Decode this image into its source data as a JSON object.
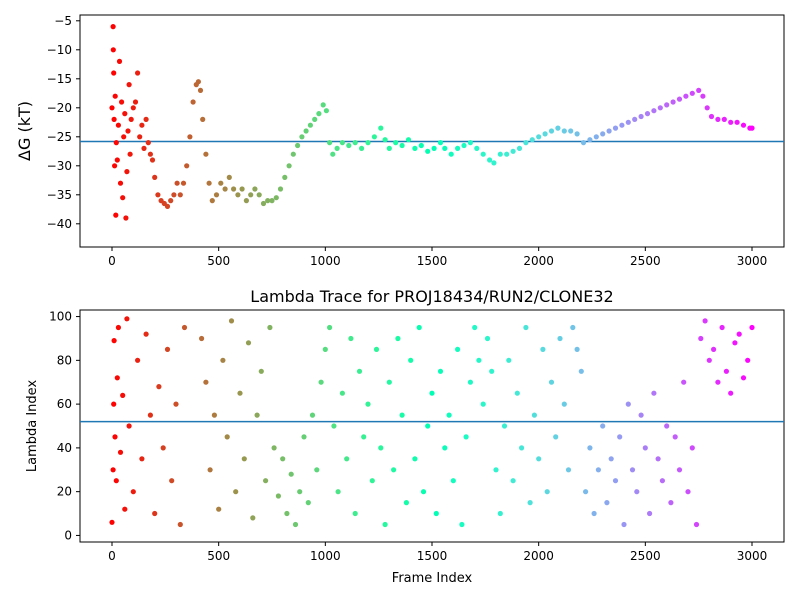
{
  "chart_data": [
    {
      "type": "scatter",
      "title": "",
      "xlabel": "",
      "ylabel": "ΔG (kT)",
      "xlim": [
        -150,
        3150
      ],
      "ylim": [
        -44,
        -4
      ],
      "xticks": [
        0,
        500,
        1000,
        1500,
        2000,
        2500,
        3000
      ],
      "yticks": [
        -5,
        -10,
        -15,
        -20,
        -25,
        -30,
        -35,
        -40
      ],
      "hline": -25.8,
      "hline_color": "#1f77b4",
      "colormap": "rainbow",
      "grid": false,
      "points": [
        [
          0,
          -20
        ],
        [
          5,
          -6
        ],
        [
          6,
          -10
        ],
        [
          8,
          -14
        ],
        [
          10,
          -22
        ],
        [
          12,
          -30
        ],
        [
          15,
          -18
        ],
        [
          18,
          -38.5
        ],
        [
          20,
          -26
        ],
        [
          25,
          -29
        ],
        [
          30,
          -23
        ],
        [
          35,
          -12
        ],
        [
          40,
          -33
        ],
        [
          45,
          -19
        ],
        [
          50,
          -35.5
        ],
        [
          55,
          -25
        ],
        [
          60,
          -21
        ],
        [
          65,
          -39
        ],
        [
          70,
          -31
        ],
        [
          75,
          -24
        ],
        [
          80,
          -16
        ],
        [
          85,
          -28
        ],
        [
          90,
          -22
        ],
        [
          100,
          -20
        ],
        [
          110,
          -19
        ],
        [
          120,
          -14
        ],
        [
          130,
          -25
        ],
        [
          140,
          -23
        ],
        [
          150,
          -27
        ],
        [
          160,
          -22
        ],
        [
          170,
          -26
        ],
        [
          180,
          -28
        ],
        [
          190,
          -29
        ],
        [
          200,
          -32
        ],
        [
          215,
          -35
        ],
        [
          230,
          -36
        ],
        [
          245,
          -36.5
        ],
        [
          260,
          -37
        ],
        [
          275,
          -36
        ],
        [
          290,
          -35
        ],
        [
          305,
          -33
        ],
        [
          320,
          -35
        ],
        [
          335,
          -33
        ],
        [
          350,
          -30
        ],
        [
          365,
          -25
        ],
        [
          380,
          -19
        ],
        [
          395,
          -16
        ],
        [
          405,
          -15.5
        ],
        [
          415,
          -17
        ],
        [
          425,
          -22
        ],
        [
          440,
          -28
        ],
        [
          455,
          -33
        ],
        [
          470,
          -36
        ],
        [
          490,
          -35
        ],
        [
          510,
          -33
        ],
        [
          530,
          -34
        ],
        [
          550,
          -32
        ],
        [
          570,
          -34
        ],
        [
          590,
          -35
        ],
        [
          610,
          -34
        ],
        [
          630,
          -36
        ],
        [
          650,
          -35
        ],
        [
          670,
          -34
        ],
        [
          690,
          -35
        ],
        [
          710,
          -36.5
        ],
        [
          730,
          -36
        ],
        [
          750,
          -36
        ],
        [
          770,
          -35.5
        ],
        [
          790,
          -34
        ],
        [
          810,
          -32
        ],
        [
          830,
          -30
        ],
        [
          850,
          -28
        ],
        [
          870,
          -26.5
        ],
        [
          890,
          -25
        ],
        [
          910,
          -24
        ],
        [
          930,
          -23
        ],
        [
          950,
          -22
        ],
        [
          970,
          -21
        ],
        [
          990,
          -19.5
        ],
        [
          1005,
          -20.5
        ],
        [
          1020,
          -26
        ],
        [
          1035,
          -28
        ],
        [
          1055,
          -27
        ],
        [
          1080,
          -26
        ],
        [
          1110,
          -26.5
        ],
        [
          1140,
          -26
        ],
        [
          1170,
          -27
        ],
        [
          1200,
          -26
        ],
        [
          1230,
          -25
        ],
        [
          1260,
          -23.5
        ],
        [
          1280,
          -25.5
        ],
        [
          1300,
          -27
        ],
        [
          1330,
          -26
        ],
        [
          1360,
          -26.5
        ],
        [
          1390,
          -25.5
        ],
        [
          1420,
          -27
        ],
        [
          1450,
          -26.5
        ],
        [
          1480,
          -27.5
        ],
        [
          1510,
          -27
        ],
        [
          1540,
          -26
        ],
        [
          1560,
          -27
        ],
        [
          1590,
          -28
        ],
        [
          1620,
          -27
        ],
        [
          1650,
          -26.5
        ],
        [
          1680,
          -26
        ],
        [
          1710,
          -27
        ],
        [
          1740,
          -28
        ],
        [
          1770,
          -29
        ],
        [
          1790,
          -29.5
        ],
        [
          1820,
          -28
        ],
        [
          1850,
          -28
        ],
        [
          1880,
          -27.5
        ],
        [
          1910,
          -27
        ],
        [
          1940,
          -26
        ],
        [
          1970,
          -25.5
        ],
        [
          2000,
          -25
        ],
        [
          2030,
          -24.5
        ],
        [
          2060,
          -24
        ],
        [
          2090,
          -23.5
        ],
        [
          2120,
          -24
        ],
        [
          2150,
          -24
        ],
        [
          2180,
          -24.5
        ],
        [
          2210,
          -26
        ],
        [
          2240,
          -25.5
        ],
        [
          2270,
          -25
        ],
        [
          2300,
          -24.5
        ],
        [
          2330,
          -24
        ],
        [
          2360,
          -23.5
        ],
        [
          2390,
          -23
        ],
        [
          2420,
          -22.5
        ],
        [
          2450,
          -22
        ],
        [
          2480,
          -21.5
        ],
        [
          2510,
          -21
        ],
        [
          2540,
          -20.5
        ],
        [
          2570,
          -20
        ],
        [
          2600,
          -19.5
        ],
        [
          2630,
          -19
        ],
        [
          2660,
          -18.5
        ],
        [
          2690,
          -18
        ],
        [
          2720,
          -17.5
        ],
        [
          2750,
          -17
        ],
        [
          2770,
          -18
        ],
        [
          2790,
          -20
        ],
        [
          2810,
          -21.5
        ],
        [
          2840,
          -22
        ],
        [
          2870,
          -22
        ],
        [
          2900,
          -22.5
        ],
        [
          2930,
          -22.5
        ],
        [
          2960,
          -23
        ],
        [
          2990,
          -23.5
        ],
        [
          3000,
          -23.5
        ]
      ]
    },
    {
      "type": "scatter",
      "title": "Lambda Trace for PROJ18434/RUN2/CLONE32",
      "xlabel": "Frame Index",
      "ylabel": "Lambda Index",
      "xlim": [
        -150,
        3150
      ],
      "ylim": [
        -3,
        103
      ],
      "xticks": [
        0,
        500,
        1000,
        1500,
        2000,
        2500,
        3000
      ],
      "yticks": [
        0,
        20,
        40,
        60,
        80,
        100
      ],
      "hline": 52,
      "hline_color": "#1f77b4",
      "colormap": "rainbow",
      "grid": false,
      "points": [
        [
          0,
          6
        ],
        [
          5,
          30
        ],
        [
          8,
          60
        ],
        [
          10,
          89
        ],
        [
          14,
          45
        ],
        [
          20,
          25
        ],
        [
          25,
          72
        ],
        [
          30,
          95
        ],
        [
          40,
          38
        ],
        [
          50,
          64
        ],
        [
          60,
          12
        ],
        [
          70,
          99
        ],
        [
          80,
          50
        ],
        [
          100,
          20
        ],
        [
          120,
          80
        ],
        [
          140,
          35
        ],
        [
          160,
          92
        ],
        [
          180,
          55
        ],
        [
          200,
          10
        ],
        [
          220,
          68
        ],
        [
          240,
          40
        ],
        [
          260,
          85
        ],
        [
          280,
          25
        ],
        [
          300,
          60
        ],
        [
          320,
          5
        ],
        [
          340,
          95
        ],
        [
          420,
          90
        ],
        [
          440,
          70
        ],
        [
          460,
          30
        ],
        [
          480,
          55
        ],
        [
          500,
          12
        ],
        [
          520,
          80
        ],
        [
          540,
          45
        ],
        [
          560,
          98
        ],
        [
          580,
          20
        ],
        [
          600,
          65
        ],
        [
          620,
          35
        ],
        [
          640,
          88
        ],
        [
          660,
          8
        ],
        [
          680,
          55
        ],
        [
          700,
          75
        ],
        [
          720,
          25
        ],
        [
          740,
          95
        ],
        [
          760,
          40
        ],
        [
          780,
          18
        ],
        [
          800,
          35
        ],
        [
          820,
          10
        ],
        [
          840,
          28
        ],
        [
          860,
          5
        ],
        [
          880,
          20
        ],
        [
          900,
          45
        ],
        [
          920,
          15
        ],
        [
          940,
          55
        ],
        [
          960,
          30
        ],
        [
          980,
          70
        ],
        [
          1000,
          85
        ],
        [
          1020,
          95
        ],
        [
          1040,
          50
        ],
        [
          1060,
          20
        ],
        [
          1080,
          65
        ],
        [
          1100,
          35
        ],
        [
          1120,
          90
        ],
        [
          1140,
          10
        ],
        [
          1160,
          75
        ],
        [
          1180,
          45
        ],
        [
          1200,
          60
        ],
        [
          1220,
          25
        ],
        [
          1240,
          85
        ],
        [
          1260,
          40
        ],
        [
          1280,
          5
        ],
        [
          1300,
          70
        ],
        [
          1320,
          30
        ],
        [
          1340,
          90
        ],
        [
          1360,
          55
        ],
        [
          1380,
          15
        ],
        [
          1400,
          80
        ],
        [
          1420,
          35
        ],
        [
          1440,
          95
        ],
        [
          1460,
          20
        ],
        [
          1480,
          50
        ],
        [
          1500,
          65
        ],
        [
          1520,
          10
        ],
        [
          1540,
          75
        ],
        [
          1560,
          40
        ],
        [
          1580,
          55
        ],
        [
          1600,
          25
        ],
        [
          1620,
          85
        ],
        [
          1640,
          5
        ],
        [
          1660,
          45
        ],
        [
          1680,
          70
        ],
        [
          1700,
          95
        ],
        [
          1720,
          80
        ],
        [
          1740,
          60
        ],
        [
          1760,
          90
        ],
        [
          1780,
          75
        ],
        [
          1800,
          30
        ],
        [
          1820,
          10
        ],
        [
          1840,
          50
        ],
        [
          1860,
          80
        ],
        [
          1880,
          25
        ],
        [
          1900,
          65
        ],
        [
          1920,
          40
        ],
        [
          1940,
          95
        ],
        [
          1960,
          15
        ],
        [
          1980,
          55
        ],
        [
          2000,
          35
        ],
        [
          2020,
          85
        ],
        [
          2040,
          20
        ],
        [
          2060,
          70
        ],
        [
          2080,
          45
        ],
        [
          2100,
          90
        ],
        [
          2120,
          60
        ],
        [
          2140,
          30
        ],
        [
          2160,
          95
        ],
        [
          2180,
          85
        ],
        [
          2200,
          75
        ],
        [
          2220,
          20
        ],
        [
          2240,
          40
        ],
        [
          2260,
          10
        ],
        [
          2280,
          30
        ],
        [
          2300,
          50
        ],
        [
          2320,
          15
        ],
        [
          2340,
          35
        ],
        [
          2360,
          25
        ],
        [
          2380,
          45
        ],
        [
          2400,
          5
        ],
        [
          2420,
          60
        ],
        [
          2440,
          30
        ],
        [
          2460,
          20
        ],
        [
          2480,
          55
        ],
        [
          2500,
          40
        ],
        [
          2520,
          10
        ],
        [
          2540,
          65
        ],
        [
          2560,
          35
        ],
        [
          2580,
          25
        ],
        [
          2600,
          50
        ],
        [
          2620,
          15
        ],
        [
          2640,
          45
        ],
        [
          2660,
          30
        ],
        [
          2680,
          70
        ],
        [
          2700,
          20
        ],
        [
          2720,
          40
        ],
        [
          2740,
          5
        ],
        [
          2760,
          90
        ],
        [
          2780,
          98
        ],
        [
          2800,
          80
        ],
        [
          2820,
          85
        ],
        [
          2840,
          70
        ],
        [
          2860,
          95
        ],
        [
          2880,
          75
        ],
        [
          2900,
          65
        ],
        [
          2920,
          88
        ],
        [
          2940,
          92
        ],
        [
          2960,
          72
        ],
        [
          2980,
          80
        ],
        [
          3000,
          95
        ]
      ]
    }
  ]
}
